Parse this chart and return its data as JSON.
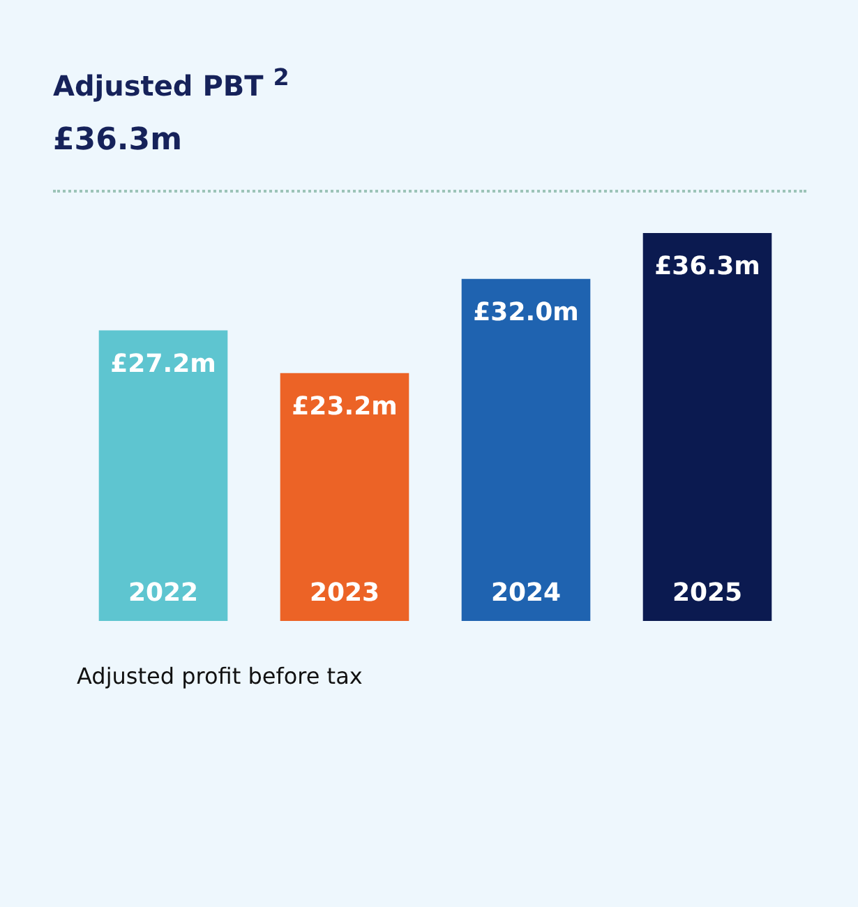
{
  "chart_data": {
    "type": "bar",
    "title": "Adjusted PBT $^{2}$",
    "subtitle": "£36.3m",
    "categories": [
      "2022",
      "2023",
      "2024",
      "2025"
    ],
    "values": [
      27.2,
      23.2,
      32.0,
      36.3
    ],
    "colors": [
      "#5ec5d0",
      "#ec6326",
      "#1f63b0",
      "#0b1a50"
    ],
    "value_labels": [
      "£27.2m",
      "£23.2m",
      "£32.0m",
      "£36.3m"
    ],
    "annotations": [
      "Adjusted profit before tax"
    ]
  }
}
